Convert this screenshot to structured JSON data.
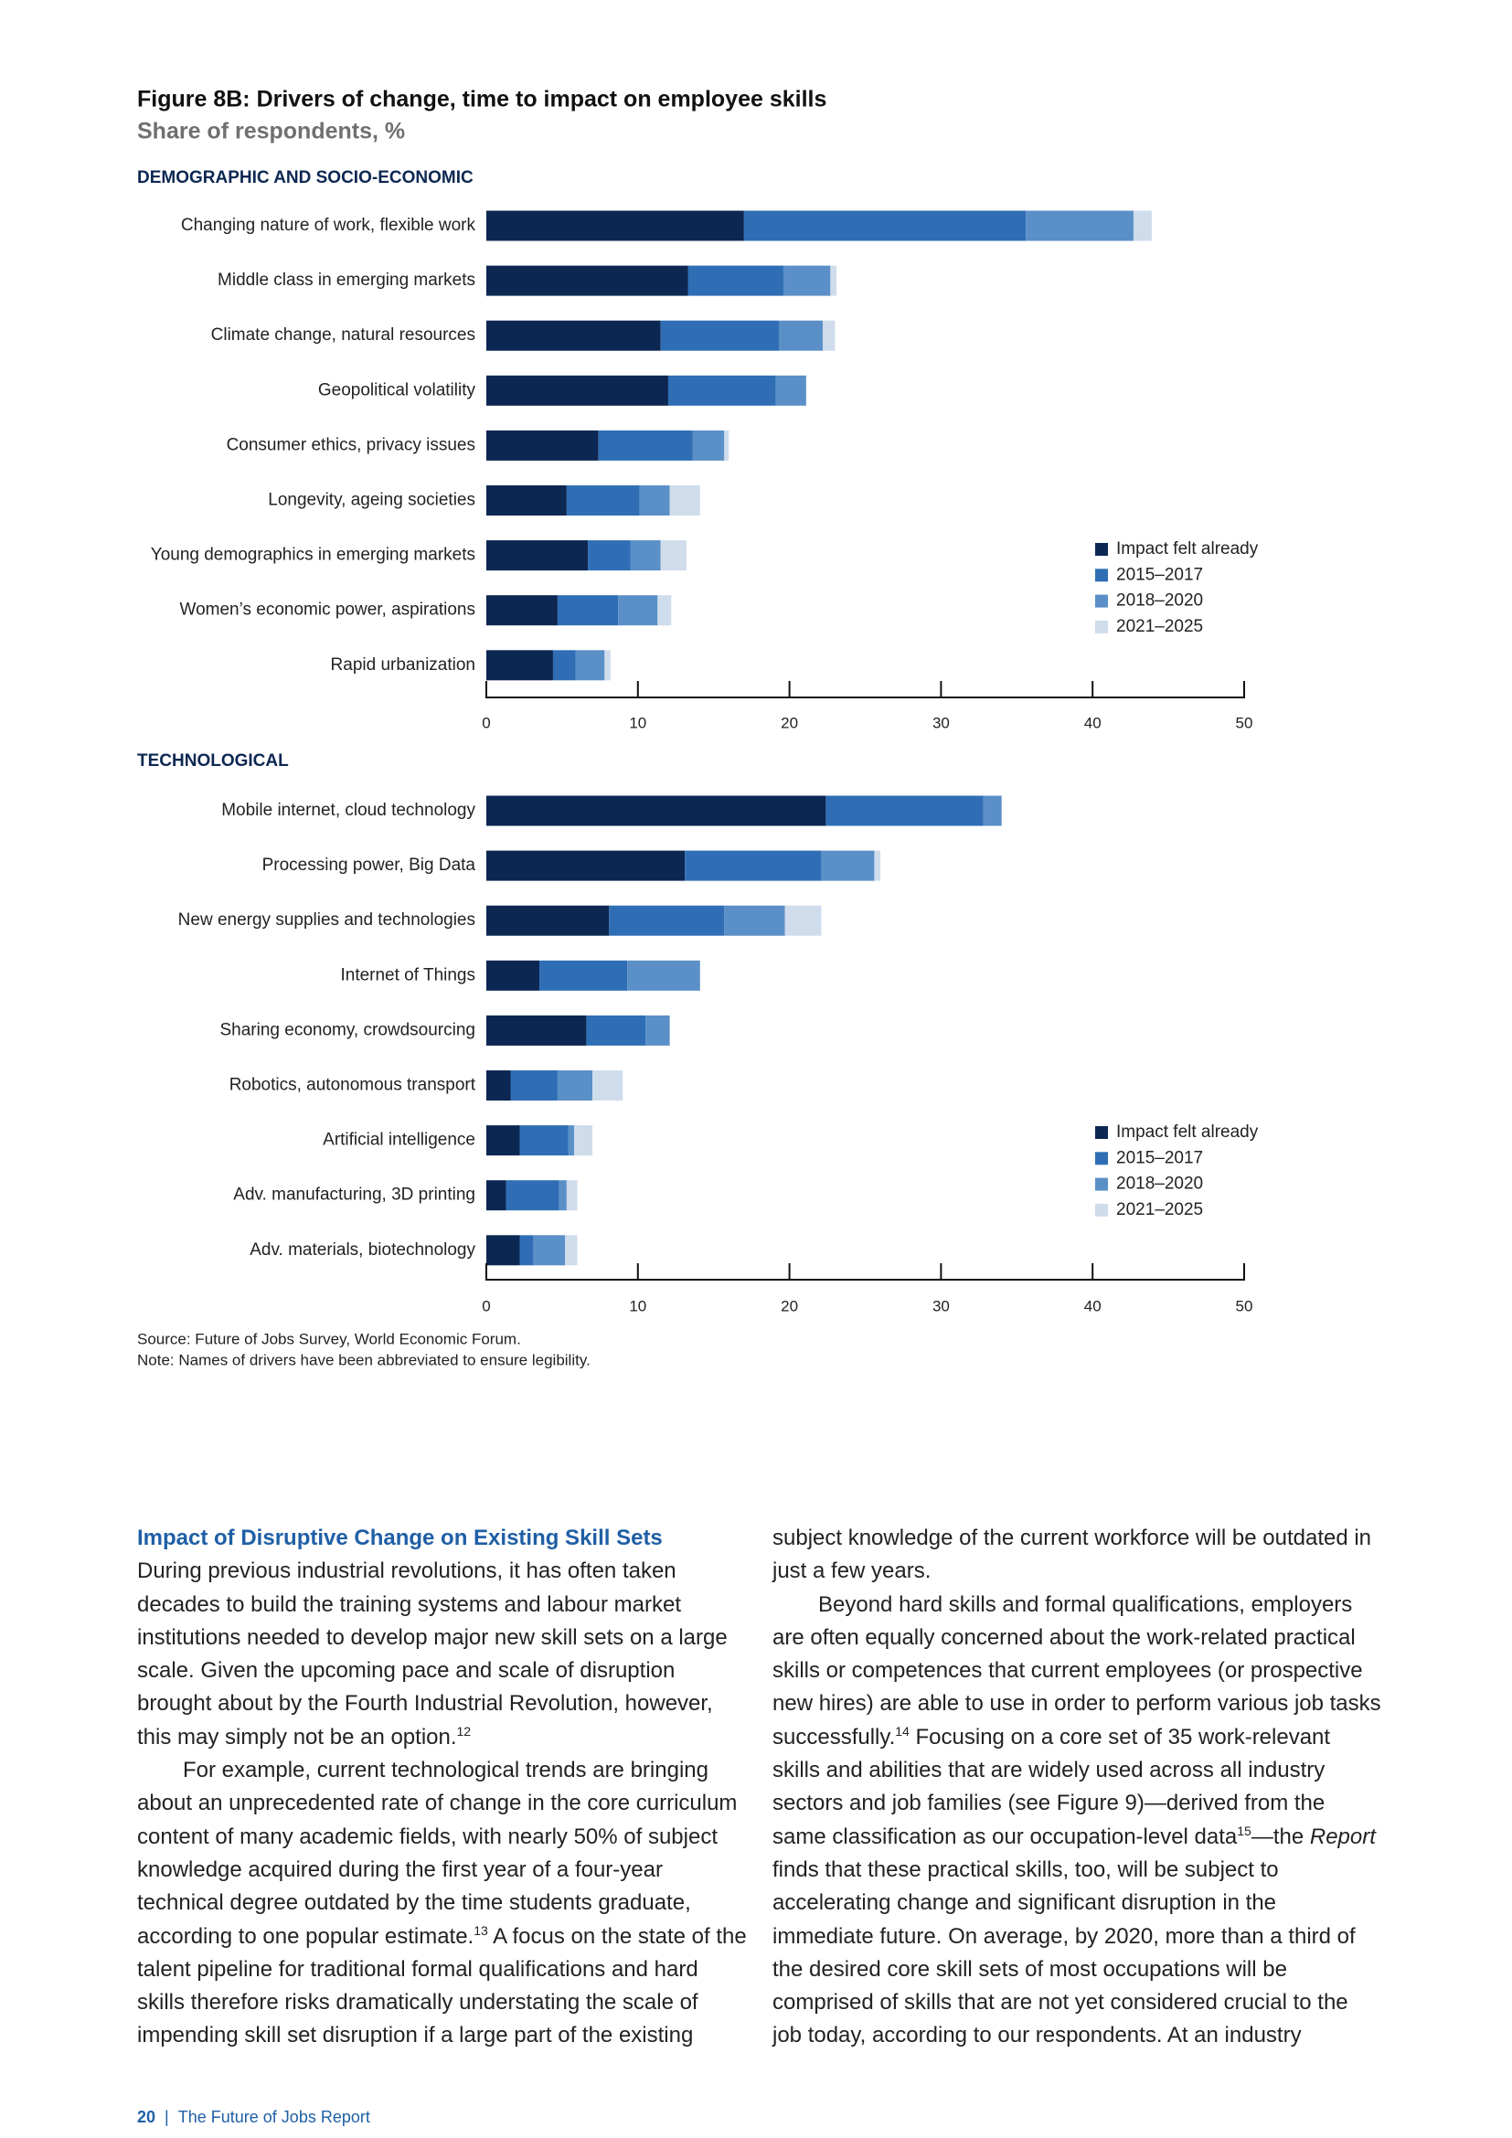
{
  "figure": {
    "title": "Figure 8B: Drivers of change, time to impact on employee skills",
    "subtitle": "Share of respondents, %",
    "source": "Source: Future of Jobs Survey, World Economic Forum.",
    "note": "Note: Names of drivers have been abbreviated to ensure legibility."
  },
  "chart_data": [
    {
      "type": "bar",
      "orientation": "horizontal",
      "stacked": true,
      "title": "DEMOGRAPHIC AND SOCIO-ECONOMIC",
      "categories": [
        "Changing nature of work, flexible work",
        "Middle class in emerging markets",
        "Climate change, natural resources",
        "Geopolitical volatility",
        "Consumer ethics, privacy issues",
        "Longevity, ageing societies",
        "Young demographics in emerging markets",
        "Women’s economic power, aspirations",
        "Rapid urbanization"
      ],
      "series": [
        {
          "name": "Impact felt already",
          "color": "#0c2752",
          "values": [
            17,
            13.3,
            11.5,
            12,
            7.4,
            5.3,
            6.7,
            4.7,
            4.4
          ]
        },
        {
          "name": "2015–2017",
          "color": "#2f6eb5",
          "values": [
            18.6,
            6.3,
            7.8,
            7.1,
            6.2,
            4.8,
            2.8,
            4,
            1.5
          ]
        },
        {
          "name": "2018–2020",
          "color": "#5b8fc7",
          "values": [
            7.1,
            3.1,
            2.9,
            2,
            2.1,
            2,
            2,
            2.6,
            1.9
          ]
        },
        {
          "name": "2021–2025",
          "color": "#cfdcec",
          "values": [
            1.2,
            0.4,
            0.8,
            0,
            0.3,
            2,
            1.7,
            0.9,
            0.4
          ]
        }
      ],
      "xlim": [
        0,
        50
      ],
      "xticks": [
        0,
        10,
        20,
        30,
        40,
        50
      ],
      "legend": "right"
    },
    {
      "type": "bar",
      "orientation": "horizontal",
      "stacked": true,
      "title": "TECHNOLOGICAL",
      "categories": [
        "Mobile internet, cloud technology",
        "Processing power, Big Data",
        "New energy supplies and technologies",
        "Internet of Things",
        "Sharing economy, crowdsourcing",
        "Robotics, autonomous transport",
        "Artificial intelligence",
        "Adv. manufacturing, 3D printing",
        "Adv. materials, biotechnology"
      ],
      "series": [
        {
          "name": "Impact felt already",
          "color": "#0c2752",
          "values": [
            22.4,
            13.1,
            8.1,
            3.5,
            6.6,
            1.6,
            2.2,
            1.3,
            2.2
          ]
        },
        {
          "name": "2015–2017",
          "color": "#2f6eb5",
          "values": [
            10.4,
            9,
            7.6,
            5.8,
            3.9,
            3.1,
            3.2,
            3.5,
            0.9
          ]
        },
        {
          "name": "2018–2020",
          "color": "#5b8fc7",
          "values": [
            1.2,
            3.5,
            4,
            4.8,
            1.6,
            2.3,
            0.4,
            0.5,
            2.1
          ]
        },
        {
          "name": "2021–2025",
          "color": "#cfdcec",
          "values": [
            0,
            0.4,
            2.4,
            0,
            0,
            2,
            1.2,
            0.7,
            0.8
          ]
        }
      ],
      "xlim": [
        0,
        50
      ],
      "xticks": [
        0,
        10,
        20,
        30,
        40,
        50
      ],
      "legend": "right"
    }
  ],
  "article": {
    "heading": "Impact of Disruptive Change on Existing Skill Sets",
    "paragraphs": [
      [
        "During previous industrial revolutions, it has often taken decades to build the training systems and labour market institutions needed to develop major new skill sets on a large scale. Given the upcoming pace and scale of disruption brought about by the Fourth Industrial Revolution, however, this may simply not be an option.",
        {
          "sup": "12"
        }
      ],
      [
        "For example, current technological trends are bringing about an unprecedented rate of change in the core curriculum content of many academic fields, with nearly 50% of subject knowledge acquired during the first year of a four-year technical degree outdated by the time students graduate, according to one popular estimate.",
        {
          "sup": "13"
        },
        " A focus on the state of the talent pipeline for traditional formal qualifications and hard skills therefore risks dramatically understating the scale of impending skill set disruption if a large part of the existing subject knowledge of the current workforce will be outdated in just a few years."
      ],
      [
        "Beyond hard skills and formal qualifications, employers are often equally concerned about the work-related practical skills or competences that current employees (or prospective new hires) are able to use in order to perform various job tasks successfully.",
        {
          "sup": "14"
        },
        " Focusing on a core set of 35 work-relevant skills and abilities that are widely used across all industry sectors and job families (see Figure 9)—derived from the same classification as our occupation-level data",
        {
          "sup": "15"
        },
        "—the ",
        {
          "em": "Report"
        },
        " finds that these practical skills, too, will be subject to accelerating change and significant disruption in the immediate future. On average, by 2020, more than a third of the desired core skill sets of most occupations will be comprised of skills that are not yet considered crucial to the job today, according to our respondents. At an industry"
      ]
    ]
  },
  "footer": {
    "page_number": "20",
    "separator": "|",
    "publication": "The Future of Jobs Report"
  }
}
